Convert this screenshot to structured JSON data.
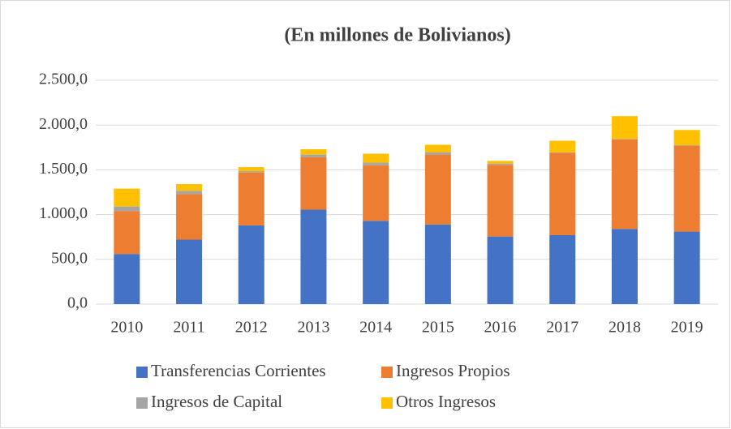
{
  "chart_data": {
    "type": "bar",
    "stacked": true,
    "title": "(En millones de Bolivianos)",
    "categories": [
      "2010",
      "2011",
      "2012",
      "2013",
      "2014",
      "2015",
      "2016",
      "2017",
      "2018",
      "2019"
    ],
    "series": [
      {
        "name": "Transferencias Corrientes",
        "color": "#4472c4",
        "values": [
          560,
          720,
          880,
          1055,
          930,
          890,
          755,
          770,
          840,
          810
        ]
      },
      {
        "name": "Ingresos Propios",
        "color": "#ed7d31",
        "values": [
          480,
          510,
          590,
          585,
          620,
          780,
          800,
          920,
          1000,
          960
        ]
      },
      {
        "name": "Ingresos de Capital",
        "color": "#a5a5a5",
        "values": [
          50,
          35,
          15,
          30,
          30,
          25,
          15,
          5,
          5,
          5
        ]
      },
      {
        "name": "Otros Ingresos",
        "color": "#ffc000",
        "values": [
          200,
          75,
          45,
          60,
          100,
          85,
          30,
          130,
          255,
          170
        ]
      }
    ],
    "ylim": [
      0,
      2500
    ],
    "yticks": [
      {
        "value": 0,
        "label": "0,0"
      },
      {
        "value": 500,
        "label": "500,0"
      },
      {
        "value": 1000,
        "label": "1.000,0"
      },
      {
        "value": 1500,
        "label": "1.500,0"
      },
      {
        "value": 2000,
        "label": "2.000,0"
      },
      {
        "value": 2500,
        "label": "2.500,0"
      }
    ],
    "grid": true,
    "legend": "bottom"
  }
}
